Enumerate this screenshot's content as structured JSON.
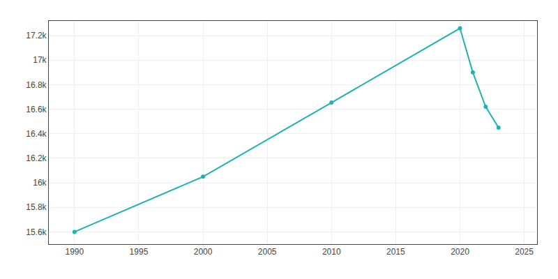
{
  "chart_data": {
    "type": "line",
    "x": [
      1990,
      2000,
      2010,
      2020,
      2021,
      2022,
      2023
    ],
    "values": [
      15600,
      16050,
      16654,
      17260,
      16900,
      16620,
      16450
    ],
    "color": "#20B2B2",
    "marker": "circle",
    "xlim": [
      1988,
      2026
    ],
    "ylim": [
      15500,
      17320
    ],
    "xticks": [
      1990,
      1995,
      2000,
      2005,
      2010,
      2015,
      2020,
      2025
    ],
    "yticks": [
      {
        "value": 15600,
        "label": "15.6k"
      },
      {
        "value": 15800,
        "label": "15.8k"
      },
      {
        "value": 16000,
        "label": "16k"
      },
      {
        "value": 16200,
        "label": "16.2k"
      },
      {
        "value": 16400,
        "label": "16.4k"
      },
      {
        "value": 16600,
        "label": "16.6k"
      },
      {
        "value": 16800,
        "label": "16.8k"
      },
      {
        "value": 17000,
        "label": "17k"
      },
      {
        "value": 17200,
        "label": "17.2k"
      }
    ],
    "grid": true
  }
}
